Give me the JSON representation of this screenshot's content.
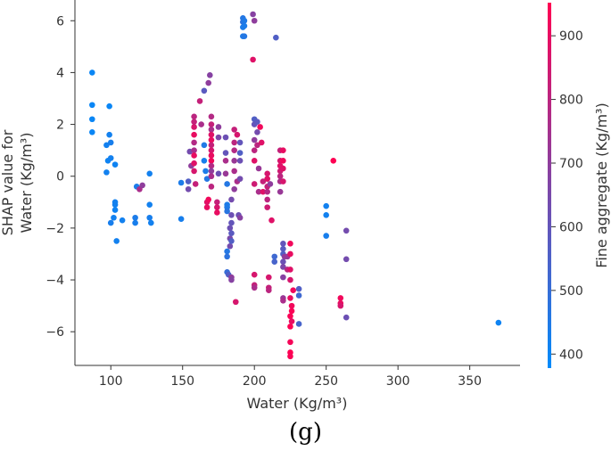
{
  "caption": "(g)",
  "chart_data": {
    "type": "scatter",
    "title": "",
    "xlabel": "Water (Kg/m³)",
    "ylabel_lines": [
      "SHAP value for",
      "Water (Kg/m³)"
    ],
    "xlim": [
      75,
      385
    ],
    "ylim": [
      -7.3,
      6.8
    ],
    "xticks": [
      100,
      150,
      200,
      250,
      300,
      350
    ],
    "yticks": [
      -6,
      -4,
      -2,
      0,
      2,
      4,
      6
    ],
    "grid": false,
    "colorbar": {
      "label": "Fine aggregate (Kg/m³)",
      "range": [
        378,
        952
      ],
      "ticks": [
        400,
        500,
        600,
        700,
        800,
        900
      ],
      "colors": [
        "#008bfb",
        "#ff0052"
      ]
    },
    "points": [
      {
        "x": 87,
        "y": 4.0,
        "c": 400
      },
      {
        "x": 87,
        "y": 2.75,
        "c": 400
      },
      {
        "x": 87,
        "y": 2.2,
        "c": 400
      },
      {
        "x": 87,
        "y": 1.7,
        "c": 400
      },
      {
        "x": 97,
        "y": 1.2,
        "c": 420
      },
      {
        "x": 98,
        "y": 0.6,
        "c": 410
      },
      {
        "x": 99,
        "y": 2.7,
        "c": 400
      },
      {
        "x": 99,
        "y": 1.6,
        "c": 420
      },
      {
        "x": 100,
        "y": 1.3,
        "c": 430
      },
      {
        "x": 100,
        "y": 0.7,
        "c": 420
      },
      {
        "x": 97,
        "y": 0.15,
        "c": 420
      },
      {
        "x": 103,
        "y": 0.45,
        "c": 410
      },
      {
        "x": 100,
        "y": -1.8,
        "c": 430
      },
      {
        "x": 102,
        "y": -1.6,
        "c": 420
      },
      {
        "x": 103,
        "y": -1.1,
        "c": 420
      },
      {
        "x": 103,
        "y": -1.3,
        "c": 410
      },
      {
        "x": 103,
        "y": -1.0,
        "c": 420
      },
      {
        "x": 104,
        "y": -2.5,
        "c": 420
      },
      {
        "x": 108,
        "y": -1.7,
        "c": 420
      },
      {
        "x": 117,
        "y": -1.6,
        "c": 440
      },
      {
        "x": 117,
        "y": -1.8,
        "c": 430
      },
      {
        "x": 118,
        "y": -0.4,
        "c": 440
      },
      {
        "x": 120,
        "y": -0.5,
        "c": 760
      },
      {
        "x": 122,
        "y": -0.35,
        "c": 700
      },
      {
        "x": 127,
        "y": 0.1,
        "c": 420
      },
      {
        "x": 127,
        "y": -1.1,
        "c": 420
      },
      {
        "x": 127,
        "y": -1.6,
        "c": 430
      },
      {
        "x": 128,
        "y": -1.8,
        "c": 420
      },
      {
        "x": 149,
        "y": -0.25,
        "c": 440
      },
      {
        "x": 149,
        "y": -1.65,
        "c": 430
      },
      {
        "x": 154,
        "y": -0.2,
        "c": 560
      },
      {
        "x": 154,
        "y": -0.5,
        "c": 640
      },
      {
        "x": 155,
        "y": 0.95,
        "c": 640
      },
      {
        "x": 156,
        "y": 0.4,
        "c": 700
      },
      {
        "x": 158,
        "y": 1.6,
        "c": 900
      },
      {
        "x": 158,
        "y": 1.9,
        "c": 860
      },
      {
        "x": 158,
        "y": 2.1,
        "c": 820
      },
      {
        "x": 158,
        "y": 2.3,
        "c": 800
      },
      {
        "x": 158,
        "y": 1.3,
        "c": 780
      },
      {
        "x": 158,
        "y": 1.0,
        "c": 760
      },
      {
        "x": 158,
        "y": 0.8,
        "c": 900
      },
      {
        "x": 158,
        "y": 0.5,
        "c": 880
      },
      {
        "x": 158,
        "y": 0.2,
        "c": 860
      },
      {
        "x": 159,
        "y": -0.3,
        "c": 820
      },
      {
        "x": 162,
        "y": 2.9,
        "c": 820
      },
      {
        "x": 163,
        "y": 2.0,
        "c": 760
      },
      {
        "x": 165,
        "y": 3.3,
        "c": 580
      },
      {
        "x": 165,
        "y": 1.2,
        "c": 450
      },
      {
        "x": 165,
        "y": 0.6,
        "c": 430
      },
      {
        "x": 166,
        "y": 0.2,
        "c": 440
      },
      {
        "x": 167,
        "y": -0.1,
        "c": 460
      },
      {
        "x": 167,
        "y": -1.0,
        "c": 880
      },
      {
        "x": 167,
        "y": -1.2,
        "c": 900
      },
      {
        "x": 168,
        "y": -0.9,
        "c": 920
      },
      {
        "x": 168,
        "y": 3.6,
        "c": 700
      },
      {
        "x": 169,
        "y": 3.9,
        "c": 680
      },
      {
        "x": 170,
        "y": 2.3,
        "c": 780
      },
      {
        "x": 170,
        "y": 2.0,
        "c": 820
      },
      {
        "x": 170,
        "y": 1.8,
        "c": 760
      },
      {
        "x": 170,
        "y": 1.6,
        "c": 880
      },
      {
        "x": 170,
        "y": 1.4,
        "c": 900
      },
      {
        "x": 170,
        "y": 1.2,
        "c": 820
      },
      {
        "x": 170,
        "y": 1.0,
        "c": 860
      },
      {
        "x": 170,
        "y": 0.8,
        "c": 900
      },
      {
        "x": 170,
        "y": 0.6,
        "c": 920
      },
      {
        "x": 170,
        "y": 0.4,
        "c": 780
      },
      {
        "x": 170,
        "y": 0.2,
        "c": 700
      },
      {
        "x": 170,
        "y": 0.0,
        "c": 760
      },
      {
        "x": 170,
        "y": -0.4,
        "c": 800
      },
      {
        "x": 174,
        "y": -1.0,
        "c": 820
      },
      {
        "x": 174,
        "y": -1.2,
        "c": 860
      },
      {
        "x": 174,
        "y": -1.4,
        "c": 900
      },
      {
        "x": 175,
        "y": 1.9,
        "c": 700
      },
      {
        "x": 175,
        "y": 1.5,
        "c": 660
      },
      {
        "x": 175,
        "y": 0.1,
        "c": 620
      },
      {
        "x": 180,
        "y": 1.5,
        "c": 620
      },
      {
        "x": 180,
        "y": 0.9,
        "c": 600
      },
      {
        "x": 180,
        "y": 0.6,
        "c": 760
      },
      {
        "x": 180,
        "y": 0.1,
        "c": 720
      },
      {
        "x": 181,
        "y": -0.3,
        "c": 460
      },
      {
        "x": 181,
        "y": -1.1,
        "c": 440
      },
      {
        "x": 181,
        "y": -1.2,
        "c": 450
      },
      {
        "x": 181,
        "y": -1.35,
        "c": 470
      },
      {
        "x": 181,
        "y": -2.9,
        "c": 460
      },
      {
        "x": 181,
        "y": -3.1,
        "c": 480
      },
      {
        "x": 181,
        "y": -3.7,
        "c": 500
      },
      {
        "x": 182,
        "y": -3.8,
        "c": 560
      },
      {
        "x": 183,
        "y": -2.0,
        "c": 620
      },
      {
        "x": 183,
        "y": -2.4,
        "c": 650
      },
      {
        "x": 183,
        "y": -2.7,
        "c": 640
      },
      {
        "x": 184,
        "y": -3.9,
        "c": 700
      },
      {
        "x": 184,
        "y": -4.0,
        "c": 680
      },
      {
        "x": 184,
        "y": -0.9,
        "c": 640
      },
      {
        "x": 184,
        "y": -1.5,
        "c": 620
      },
      {
        "x": 184,
        "y": -1.8,
        "c": 600
      },
      {
        "x": 184,
        "y": -2.2,
        "c": 580
      },
      {
        "x": 184,
        "y": -2.5,
        "c": 560
      },
      {
        "x": 186,
        "y": -0.5,
        "c": 700
      },
      {
        "x": 186,
        "y": 0.2,
        "c": 760
      },
      {
        "x": 186,
        "y": 0.6,
        "c": 720
      },
      {
        "x": 186,
        "y": 1.0,
        "c": 780
      },
      {
        "x": 186,
        "y": 1.3,
        "c": 800
      },
      {
        "x": 186,
        "y": 1.8,
        "c": 820
      },
      {
        "x": 187,
        "y": -4.85,
        "c": 860
      },
      {
        "x": 188,
        "y": 1.6,
        "c": 860
      },
      {
        "x": 188,
        "y": -0.2,
        "c": 760
      },
      {
        "x": 189,
        "y": -1.5,
        "c": 620
      },
      {
        "x": 190,
        "y": 0.9,
        "c": 560
      },
      {
        "x": 190,
        "y": 1.3,
        "c": 600
      },
      {
        "x": 190,
        "y": 0.6,
        "c": 620
      },
      {
        "x": 190,
        "y": -0.1,
        "c": 640
      },
      {
        "x": 190,
        "y": -1.6,
        "c": 680
      },
      {
        "x": 192,
        "y": 6.1,
        "c": 460
      },
      {
        "x": 192,
        "y": 5.95,
        "c": 480
      },
      {
        "x": 192,
        "y": 5.75,
        "c": 440
      },
      {
        "x": 192,
        "y": 5.4,
        "c": 450
      },
      {
        "x": 193,
        "y": 6.0,
        "c": 450
      },
      {
        "x": 193,
        "y": 5.8,
        "c": 440
      },
      {
        "x": 193,
        "y": 5.4,
        "c": 460
      },
      {
        "x": 199,
        "y": 6.25,
        "c": 680
      },
      {
        "x": 200,
        "y": 6.0,
        "c": 700
      },
      {
        "x": 199,
        "y": 4.5,
        "c": 880
      },
      {
        "x": 200,
        "y": 2.2,
        "c": 560
      },
      {
        "x": 200,
        "y": 2.0,
        "c": 600
      },
      {
        "x": 200,
        "y": 1.4,
        "c": 700
      },
      {
        "x": 200,
        "y": 1.0,
        "c": 800
      },
      {
        "x": 200,
        "y": 0.6,
        "c": 880
      },
      {
        "x": 200,
        "y": -0.3,
        "c": 840
      },
      {
        "x": 200,
        "y": -3.8,
        "c": 860
      },
      {
        "x": 200,
        "y": -4.2,
        "c": 820
      },
      {
        "x": 200,
        "y": -4.3,
        "c": 760
      },
      {
        "x": 202,
        "y": 2.1,
        "c": 580
      },
      {
        "x": 202,
        "y": 1.7,
        "c": 640
      },
      {
        "x": 202,
        "y": 1.2,
        "c": 800
      },
      {
        "x": 203,
        "y": 0.3,
        "c": 720
      },
      {
        "x": 203,
        "y": -0.6,
        "c": 760
      },
      {
        "x": 204,
        "y": 1.9,
        "c": 920
      },
      {
        "x": 205,
        "y": 1.3,
        "c": 880
      },
      {
        "x": 206,
        "y": -0.2,
        "c": 820
      },
      {
        "x": 206,
        "y": -0.6,
        "c": 880
      },
      {
        "x": 209,
        "y": 0.1,
        "c": 860
      },
      {
        "x": 209,
        "y": -0.1,
        "c": 880
      },
      {
        "x": 209,
        "y": -0.4,
        "c": 820
      },
      {
        "x": 209,
        "y": -0.6,
        "c": 780
      },
      {
        "x": 209,
        "y": -0.9,
        "c": 800
      },
      {
        "x": 209,
        "y": -1.2,
        "c": 840
      },
      {
        "x": 210,
        "y": -3.9,
        "c": 860
      },
      {
        "x": 210,
        "y": -4.3,
        "c": 820
      },
      {
        "x": 210,
        "y": -4.4,
        "c": 800
      },
      {
        "x": 211,
        "y": -0.3,
        "c": 700
      },
      {
        "x": 212,
        "y": -1.7,
        "c": 880
      },
      {
        "x": 214,
        "y": -3.1,
        "c": 520
      },
      {
        "x": 214,
        "y": -3.3,
        "c": 540
      },
      {
        "x": 215,
        "y": 5.35,
        "c": 560
      },
      {
        "x": 218,
        "y": 1.0,
        "c": 820
      },
      {
        "x": 218,
        "y": 0.6,
        "c": 860
      },
      {
        "x": 218,
        "y": 0.4,
        "c": 880
      },
      {
        "x": 218,
        "y": 0.2,
        "c": 840
      },
      {
        "x": 218,
        "y": 0.0,
        "c": 800
      },
      {
        "x": 218,
        "y": -0.2,
        "c": 760
      },
      {
        "x": 218,
        "y": -0.6,
        "c": 720
      },
      {
        "x": 220,
        "y": 1.0,
        "c": 900
      },
      {
        "x": 220,
        "y": 0.6,
        "c": 920
      },
      {
        "x": 220,
        "y": 0.3,
        "c": 880
      },
      {
        "x": 220,
        "y": -0.2,
        "c": 860
      },
      {
        "x": 220,
        "y": -2.6,
        "c": 600
      },
      {
        "x": 220,
        "y": -2.8,
        "c": 580
      },
      {
        "x": 220,
        "y": -3.0,
        "c": 560
      },
      {
        "x": 220,
        "y": -3.3,
        "c": 620
      },
      {
        "x": 220,
        "y": -3.5,
        "c": 660
      },
      {
        "x": 220,
        "y": -3.9,
        "c": 680
      },
      {
        "x": 220,
        "y": -4.7,
        "c": 720
      },
      {
        "x": 220,
        "y": -4.8,
        "c": 760
      },
      {
        "x": 221,
        "y": -3.1,
        "c": 700
      },
      {
        "x": 223,
        "y": -3.1,
        "c": 720
      },
      {
        "x": 223,
        "y": -3.6,
        "c": 800
      },
      {
        "x": 225,
        "y": -2.6,
        "c": 920
      },
      {
        "x": 225,
        "y": -3.0,
        "c": 900
      },
      {
        "x": 225,
        "y": -3.6,
        "c": 880
      },
      {
        "x": 225,
        "y": -4.0,
        "c": 860
      },
      {
        "x": 225,
        "y": -4.7,
        "c": 900
      },
      {
        "x": 225,
        "y": -5.4,
        "c": 940
      },
      {
        "x": 225,
        "y": -5.8,
        "c": 950
      },
      {
        "x": 225,
        "y": -6.4,
        "c": 930
      },
      {
        "x": 225,
        "y": -6.8,
        "c": 950
      },
      {
        "x": 225,
        "y": -6.95,
        "c": 940
      },
      {
        "x": 226,
        "y": -5.0,
        "c": 920
      },
      {
        "x": 226,
        "y": -5.2,
        "c": 940
      },
      {
        "x": 226,
        "y": -5.6,
        "c": 900
      },
      {
        "x": 227,
        "y": -4.4,
        "c": 920
      },
      {
        "x": 231,
        "y": -4.35,
        "c": 560
      },
      {
        "x": 231,
        "y": -4.6,
        "c": 520
      },
      {
        "x": 231,
        "y": -5.7,
        "c": 540
      },
      {
        "x": 250,
        "y": -1.15,
        "c": 420
      },
      {
        "x": 250,
        "y": -1.5,
        "c": 420
      },
      {
        "x": 250,
        "y": -2.3,
        "c": 430
      },
      {
        "x": 255,
        "y": 0.6,
        "c": 950
      },
      {
        "x": 260,
        "y": -4.7,
        "c": 920
      },
      {
        "x": 260,
        "y": -4.9,
        "c": 900
      },
      {
        "x": 260,
        "y": -5.0,
        "c": 860
      },
      {
        "x": 264,
        "y": -2.1,
        "c": 640
      },
      {
        "x": 264,
        "y": -3.2,
        "c": 640
      },
      {
        "x": 264,
        "y": -5.45,
        "c": 620
      },
      {
        "x": 370,
        "y": -5.65,
        "c": 410
      }
    ]
  }
}
